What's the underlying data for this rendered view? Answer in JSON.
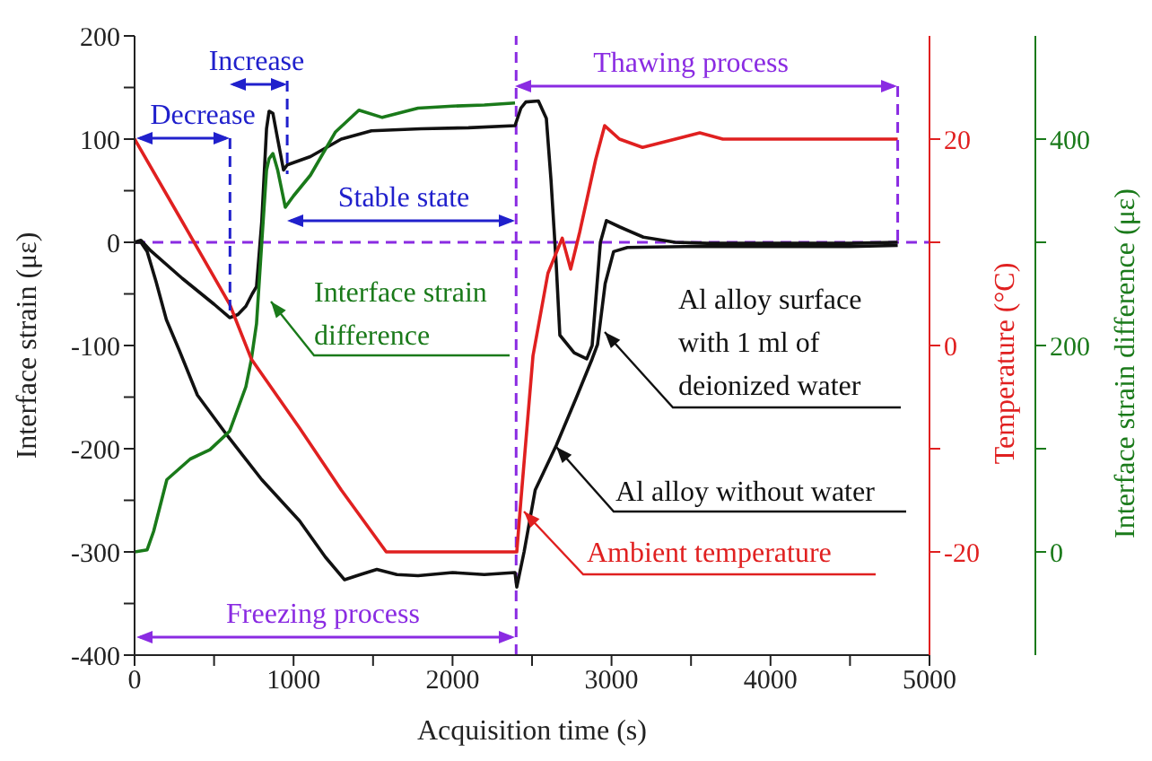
{
  "chart_data": {
    "type": "line",
    "xlabel": "Acquisition time (s)",
    "ylabel": "Interface strain (με)",
    "y2label": "Temperature (°C)",
    "y3label": "Interface strain difference (με)",
    "xlim": [
      0,
      5000
    ],
    "xticks": [
      0,
      {
        "value": 500,
        "label": null
      },
      1000,
      {
        "value": 1500,
        "label": null
      },
      2000,
      {
        "value": 2500,
        "label": null
      },
      3000,
      {
        "value": 3500,
        "label": null
      },
      4000,
      {
        "value": 4500,
        "label": null
      },
      5000
    ],
    "ylim": [
      -400,
      200
    ],
    "yticks": [
      -400,
      {
        "value": -350,
        "label": null
      },
      -300,
      {
        "value": -250,
        "label": null
      },
      -200,
      {
        "value": -150,
        "label": null
      },
      -100,
      {
        "value": -50,
        "label": null
      },
      0,
      {
        "value": 50,
        "label": null
      },
      100,
      {
        "value": 150,
        "label": null
      },
      200
    ],
    "y2lim": [
      -30,
      30
    ],
    "y2ticks": [
      -20,
      {
        "value": -10,
        "label": null
      },
      0,
      {
        "value": 10,
        "label": null
      },
      20
    ],
    "y3lim": [
      -100,
      500
    ],
    "y3ticks": [
      0,
      {
        "value": 100,
        "label": null
      },
      200,
      {
        "value": 300,
        "label": null
      },
      400
    ],
    "series": [
      {
        "name": "Al alloy surface with 1 ml of deionized water",
        "color": "#111111",
        "x": [
          0,
          40,
          100,
          300,
          500,
          598,
          650,
          700,
          740,
          767,
          800,
          830,
          846,
          870,
          900,
          937,
          960,
          1106,
          1300,
          1490,
          1800,
          2100,
          2393,
          2430,
          2461,
          2540,
          2590,
          2619,
          2652,
          2675,
          2765,
          2844,
          2878,
          2930,
          2968,
          3050,
          3200,
          3400,
          3600,
          4000,
          4500,
          4800
        ],
        "values": [
          0,
          2,
          -8,
          -35,
          -60,
          -73,
          -70,
          -62,
          -50,
          -43,
          20,
          110,
          127,
          125,
          100,
          70,
          75,
          83,
          100,
          108,
          110,
          111,
          113,
          130,
          136,
          137,
          120,
          61,
          -21,
          -90,
          -107,
          -113,
          -100,
          0,
          21,
          15,
          5,
          0,
          -1,
          -1,
          -1,
          0
        ]
      },
      {
        "name": "Al alloy without water",
        "color": "#111111",
        "x": [
          0,
          40,
          79,
          135,
          200,
          282,
          395,
          587,
          800,
          1038,
          1200,
          1321,
          1420,
          1524,
          1650,
          1783,
          2000,
          2200,
          2393,
          2404,
          2450,
          2520,
          2652,
          2780,
          2878,
          2912,
          2960,
          3013,
          3100,
          3500,
          4000,
          4500,
          4800
        ],
        "values": [
          0,
          0,
          -9,
          -38,
          -75,
          -105,
          -148,
          -188,
          -230,
          -270,
          -305,
          -327,
          -322,
          -317,
          -322,
          -323,
          -320,
          -322,
          -320,
          -334,
          -300,
          -240,
          -197,
          -150,
          -113,
          -99,
          -40,
          -9,
          -5,
          -4,
          -4,
          -4,
          -3
        ]
      },
      {
        "name": "Interface strain difference",
        "color": "#1a7a1a",
        "axis": "y3",
        "x": [
          0,
          79,
          120,
          203,
          350,
          474,
          598,
          700,
          734,
          767,
          800,
          830,
          846,
          870,
          900,
          948,
          1000,
          1106,
          1264,
          1411,
          1558,
          1783,
          2000,
          2200,
          2393
        ],
        "values": [
          0,
          2,
          20,
          70,
          90,
          99,
          117,
          160,
          186,
          221,
          300,
          370,
          381,
          386,
          370,
          334,
          345,
          365,
          407,
          428,
          421,
          430,
          432,
          433,
          435
        ]
      },
      {
        "name": "Ambient temperature",
        "color": "#e02020",
        "axis": "y2",
        "x": [
          0,
          300,
          598,
          734,
          1038,
          1300,
          1583,
          2000,
          2404,
          2430,
          2506,
          2600,
          2690,
          2743,
          2800,
          2900,
          2957,
          3050,
          3195,
          3555,
          3700,
          4800
        ],
        "values": [
          20,
          12,
          4,
          -1.3,
          -8,
          -14,
          -20,
          -20,
          -20,
          -15,
          -1,
          7,
          10.4,
          7.4,
          11,
          18,
          21.3,
          20,
          19.2,
          20.6,
          20,
          20
        ]
      }
    ],
    "ref_lines": [
      {
        "axis": "y",
        "value": 0,
        "color": "#8a2be2",
        "line_style": "dashed"
      },
      {
        "axis": "x",
        "value": 2400,
        "color": "#8a2be2",
        "line_style": "dashed"
      },
      {
        "axis": "x",
        "value": 600,
        "color": "#2020cc",
        "line_style": "dashed"
      },
      {
        "axis": "x",
        "value": 960,
        "color": "#2020cc",
        "line_style": "dashed"
      },
      {
        "axis": "x",
        "value": 4800,
        "color": "#8a2be2",
        "line_style": "dashed"
      }
    ],
    "annotations": [
      "Decrease",
      "Increase",
      "Stable state",
      "Freezing process",
      "Thawing process"
    ],
    "legend": "center"
  }
}
